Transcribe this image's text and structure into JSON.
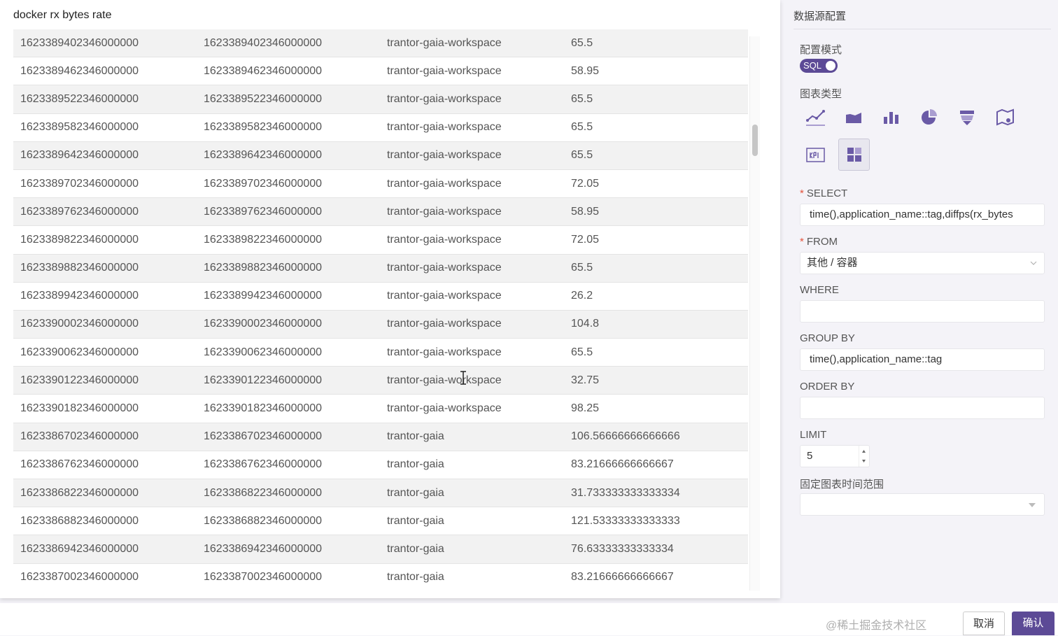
{
  "panel_title": "docker rx bytes rate",
  "table": {
    "rows": [
      [
        "1623389402346000000",
        "1623389402346000000",
        "trantor-gaia-workspace",
        "65.5"
      ],
      [
        "1623389462346000000",
        "1623389462346000000",
        "trantor-gaia-workspace",
        "58.95"
      ],
      [
        "1623389522346000000",
        "1623389522346000000",
        "trantor-gaia-workspace",
        "65.5"
      ],
      [
        "1623389582346000000",
        "1623389582346000000",
        "trantor-gaia-workspace",
        "65.5"
      ],
      [
        "1623389642346000000",
        "1623389642346000000",
        "trantor-gaia-workspace",
        "65.5"
      ],
      [
        "1623389702346000000",
        "1623389702346000000",
        "trantor-gaia-workspace",
        "72.05"
      ],
      [
        "1623389762346000000",
        "1623389762346000000",
        "trantor-gaia-workspace",
        "58.95"
      ],
      [
        "1623389822346000000",
        "1623389822346000000",
        "trantor-gaia-workspace",
        "72.05"
      ],
      [
        "1623389882346000000",
        "1623389882346000000",
        "trantor-gaia-workspace",
        "65.5"
      ],
      [
        "1623389942346000000",
        "1623389942346000000",
        "trantor-gaia-workspace",
        "26.2"
      ],
      [
        "1623390002346000000",
        "1623390002346000000",
        "trantor-gaia-workspace",
        "104.8"
      ],
      [
        "1623390062346000000",
        "1623390062346000000",
        "trantor-gaia-workspace",
        "65.5"
      ],
      [
        "1623390122346000000",
        "1623390122346000000",
        "trantor-gaia-workspace",
        "32.75"
      ],
      [
        "1623390182346000000",
        "1623390182346000000",
        "trantor-gaia-workspace",
        "98.25"
      ],
      [
        "1623386702346000000",
        "1623386702346000000",
        "trantor-gaia",
        "106.56666666666666"
      ],
      [
        "1623386762346000000",
        "1623386762346000000",
        "trantor-gaia",
        "83.21666666666667"
      ],
      [
        "1623386822346000000",
        "1623386822346000000",
        "trantor-gaia",
        "31.733333333333334"
      ],
      [
        "1623386882346000000",
        "1623386882346000000",
        "trantor-gaia",
        "121.53333333333333"
      ],
      [
        "1623386942346000000",
        "1623386942346000000",
        "trantor-gaia",
        "76.63333333333334"
      ],
      [
        "1623387002346000000",
        "1623387002346000000",
        "trantor-gaia",
        "83.21666666666667"
      ]
    ]
  },
  "config": {
    "title": "数据源配置",
    "mode_label": "配置模式",
    "mode_toggle": "SQL",
    "chart_type_label": "图表类型",
    "chart_types": [
      "line-chart-icon",
      "area-chart-icon",
      "bar-chart-icon",
      "pie-chart-icon",
      "funnel-chart-icon",
      "map-chart-icon",
      "kpi-icon",
      "table-chart-icon"
    ],
    "selected_chart_type": "table-chart-icon",
    "select_label": "SELECT",
    "select_value": "time(),application_name::tag,diffps(rx_bytes",
    "from_label": "FROM",
    "from_value": "其他 / 容器",
    "where_label": "WHERE",
    "where_value": "",
    "groupby_label": "GROUP BY",
    "groupby_value": "time(),application_name::tag",
    "orderby_label": "ORDER BY",
    "orderby_value": "",
    "limit_label": "LIMIT",
    "limit_value": "5",
    "time_range_label": "固定图表时间范围",
    "time_range_value": ""
  },
  "footer": {
    "cancel": "取消",
    "confirm": "确认",
    "watermark": "@稀土掘金技术社区"
  },
  "colors": {
    "accent": "#5c4a96",
    "row_alt": "#f2f2f2",
    "panel_bg": "#f4f3f8"
  }
}
